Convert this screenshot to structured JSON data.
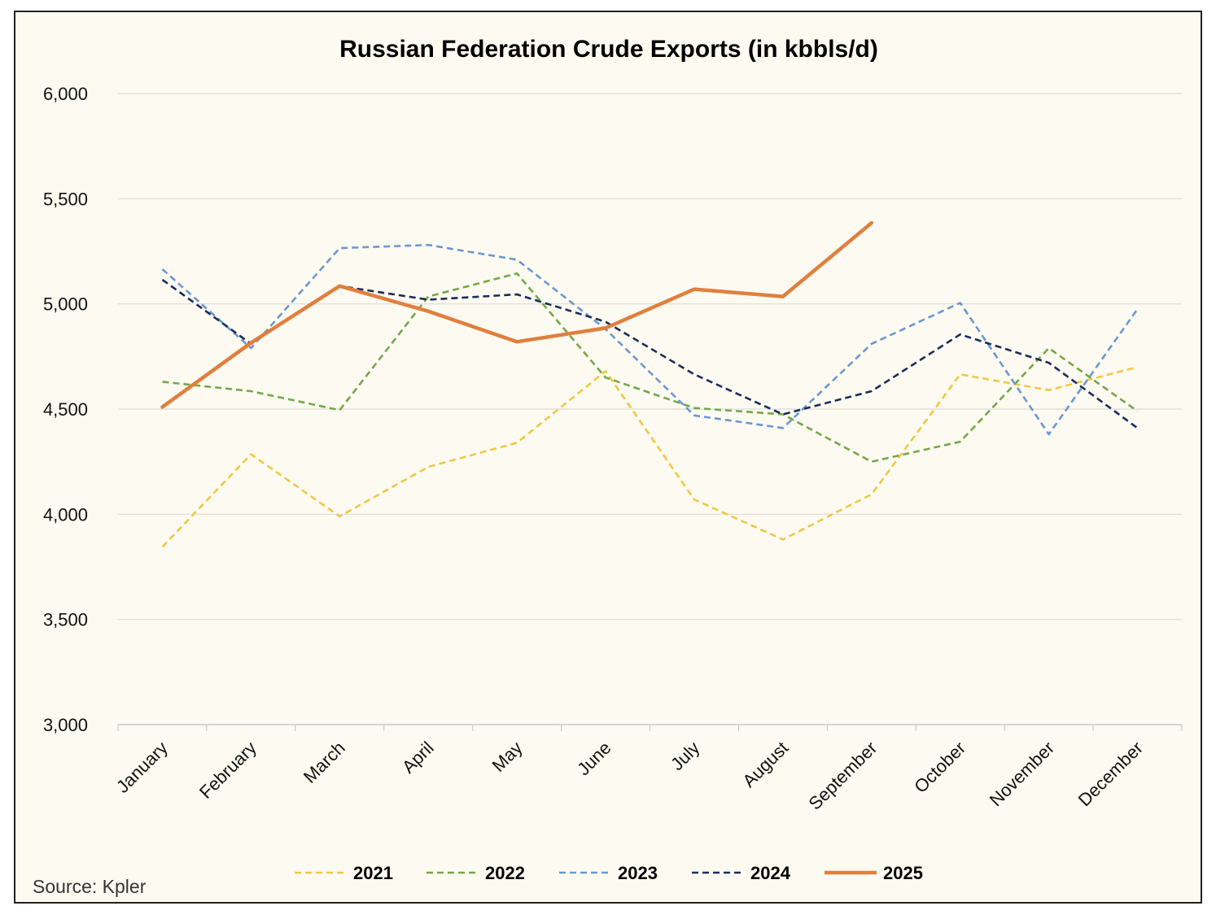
{
  "chart_data": {
    "type": "line",
    "title": "Russian Federation Crude Exports (in kbbls/d)",
    "xlabel": "",
    "ylabel": "",
    "categories": [
      "January",
      "February",
      "March",
      "April",
      "May",
      "June",
      "July",
      "August",
      "September",
      "October",
      "November",
      "December"
    ],
    "ylim": [
      3000,
      6000
    ],
    "yticks": [
      3000,
      3500,
      4000,
      4500,
      5000,
      5500,
      6000
    ],
    "ytick_labels": [
      "3,000",
      "3,500",
      "4,000",
      "4,500",
      "5,000",
      "5,500",
      "6,000"
    ],
    "grid": "horizontal",
    "legend_position": "bottom",
    "series": [
      {
        "name": "2021",
        "color": "#f2c744",
        "style": "dashed",
        "values": [
          3845,
          4285,
          3990,
          4225,
          4340,
          4680,
          4070,
          3880,
          4095,
          4665,
          4590,
          4700
        ]
      },
      {
        "name": "2022",
        "color": "#72a84a",
        "style": "dashed",
        "values": [
          4630,
          4585,
          4495,
          5035,
          5145,
          4650,
          4505,
          4475,
          4250,
          4345,
          4790,
          4490
        ]
      },
      {
        "name": "2023",
        "color": "#6b97d1",
        "style": "dashed",
        "values": [
          5165,
          4790,
          5265,
          5280,
          5210,
          4880,
          4470,
          4410,
          4810,
          5005,
          4380,
          4975
        ]
      },
      {
        "name": "2024",
        "color": "#1b2c5c",
        "style": "dashed",
        "values": [
          5115,
          4810,
          5085,
          5020,
          5045,
          4915,
          4665,
          4475,
          4585,
          4855,
          4720,
          4410
        ]
      },
      {
        "name": "2025",
        "color": "#e07f3e",
        "style": "solid",
        "values": [
          4510,
          4815,
          5085,
          4965,
          4820,
          4885,
          5070,
          5035,
          5385,
          null,
          null,
          null
        ]
      }
    ]
  },
  "source": "Source: Kpler"
}
